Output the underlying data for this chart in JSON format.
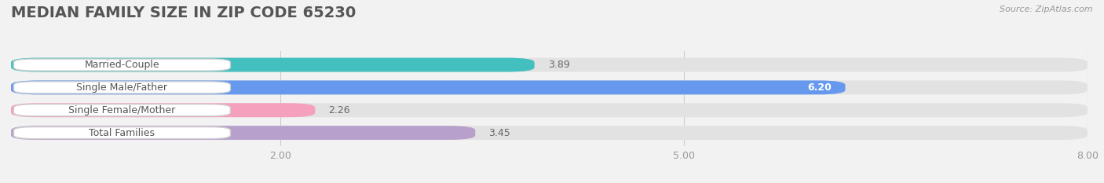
{
  "title": "MEDIAN FAMILY SIZE IN ZIP CODE 65230",
  "source": "Source: ZipAtlas.com",
  "categories": [
    "Married-Couple",
    "Single Male/Father",
    "Single Female/Mother",
    "Total Families"
  ],
  "values": [
    3.89,
    6.2,
    2.26,
    3.45
  ],
  "bar_colors": [
    "#44bfbf",
    "#6699ee",
    "#f5a0bc",
    "#b8a0cc"
  ],
  "xlim": [
    0,
    8.0
  ],
  "xticks": [
    2.0,
    5.0,
    8.0
  ],
  "xtick_labels": [
    "2.00",
    "5.00",
    "8.00"
  ],
  "bar_height": 0.62,
  "background_color": "#f2f2f2",
  "title_fontsize": 14,
  "label_fontsize": 9,
  "value_fontsize": 9,
  "value_inside_threshold": 5.5
}
